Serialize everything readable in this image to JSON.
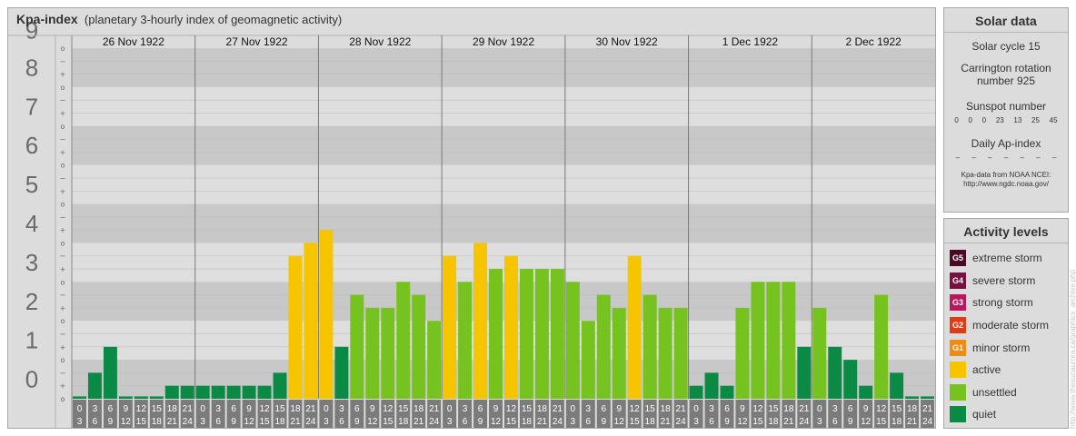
{
  "chart_data": {
    "type": "bar",
    "title": "Kpa-index",
    "subtitle": "(planetary 3-hourly index of geomagnetic activity)",
    "ylim": [
      0,
      9
    ],
    "y_ticks": [
      "0",
      "1",
      "2",
      "3",
      "4",
      "5",
      "6",
      "7",
      "8",
      "9"
    ],
    "minor_tick_labels": [
      "o",
      "+",
      "−"
    ],
    "days": [
      "26 Nov 1922",
      "27 Nov 1922",
      "28 Nov 1922",
      "29 Nov 1922",
      "30 Nov 1922",
      "1 Dec 1922",
      "2 Dec 1922"
    ],
    "interval_start_labels": [
      "0",
      "3",
      "6",
      "9",
      "12",
      "15",
      "18",
      "21"
    ],
    "interval_end_labels": [
      "3",
      "6",
      "9",
      "12",
      "15",
      "18",
      "21",
      "24"
    ],
    "values": [
      0.0,
      0.667,
      1.333,
      0.0,
      0.0,
      0.0,
      0.333,
      0.333,
      0.333,
      0.333,
      0.333,
      0.333,
      0.333,
      0.667,
      3.667,
      4.0,
      4.333,
      1.333,
      2.667,
      2.333,
      2.333,
      3.0,
      2.667,
      2.0,
      3.667,
      3.0,
      4.0,
      3.333,
      3.667,
      3.333,
      3.333,
      3.333,
      3.0,
      2.0,
      2.667,
      2.333,
      3.667,
      2.667,
      2.333,
      2.333,
      0.333,
      0.667,
      0.333,
      2.333,
      3.0,
      3.0,
      3.0,
      1.333,
      2.333,
      1.333,
      1.0,
      0.333,
      2.667,
      0.667,
      0.0,
      0.0
    ],
    "levels": [
      "quiet",
      "quiet",
      "quiet",
      "quiet",
      "quiet",
      "quiet",
      "quiet",
      "quiet",
      "quiet",
      "quiet",
      "quiet",
      "quiet",
      "quiet",
      "quiet",
      "active",
      "active",
      "active",
      "quiet",
      "unsettled",
      "unsettled",
      "unsettled",
      "unsettled",
      "unsettled",
      "unsettled",
      "active",
      "unsettled",
      "active",
      "unsettled",
      "active",
      "unsettled",
      "unsettled",
      "unsettled",
      "unsettled",
      "unsettled",
      "unsettled",
      "unsettled",
      "active",
      "unsettled",
      "unsettled",
      "unsettled",
      "quiet",
      "quiet",
      "quiet",
      "unsettled",
      "unsettled",
      "unsettled",
      "unsettled",
      "quiet",
      "unsettled",
      "quiet",
      "quiet",
      "quiet",
      "unsettled",
      "quiet",
      "quiet",
      "quiet"
    ],
    "colors": {
      "quiet": "#0b8a46",
      "unsettled": "#76c21f",
      "active": "#f6c500"
    }
  },
  "solar": {
    "title": "Solar data",
    "cycle": "Solar cycle 15",
    "carrington_1": "Carrington rotation",
    "carrington_2": "number 925",
    "sunspot_title": "Sunspot number",
    "sunspot_values": [
      "0",
      "0",
      "0",
      "23",
      "13",
      "25",
      "45"
    ],
    "ap_title": "Daily Ap-index",
    "ap_values": [
      "–",
      "–",
      "–",
      "–",
      "–",
      "–",
      "–"
    ],
    "note_1": "Kpa-data from NOAA NCEI:",
    "note_2": "http://www.ngdc.noaa.gov/"
  },
  "activity": {
    "title": "Activity levels",
    "items": [
      {
        "badge": "G5",
        "label": "extreme storm",
        "color": "#4a0a24"
      },
      {
        "badge": "G4",
        "label": "severe storm",
        "color": "#7a1040"
      },
      {
        "badge": "G3",
        "label": "strong storm",
        "color": "#b8185e"
      },
      {
        "badge": "G2",
        "label": "moderate storm",
        "color": "#e03c14"
      },
      {
        "badge": "G1",
        "label": "minor storm",
        "color": "#ef8a14"
      },
      {
        "badge": "",
        "label": "active",
        "color": "#f6c500"
      },
      {
        "badge": "",
        "label": "unsettled",
        "color": "#76c21f"
      },
      {
        "badge": "",
        "label": "quiet",
        "color": "#0b8a46"
      }
    ]
  },
  "credit": "http://www.thesunaurora.ca/graphics_archive.php"
}
